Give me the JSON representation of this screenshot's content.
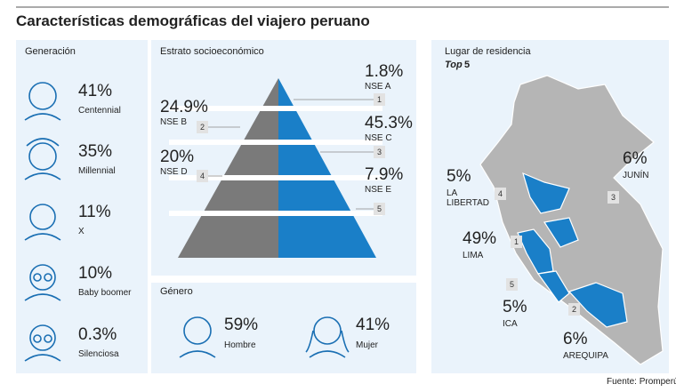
{
  "title": "Características demográficas del viajero peruano",
  "generation": {
    "title": "Generación",
    "items": [
      {
        "value": "41%",
        "label": "Centennial"
      },
      {
        "value": "35%",
        "label": "Millennial"
      },
      {
        "value": "11%",
        "label": "X"
      },
      {
        "value": "10%",
        "label": "Baby boomer"
      },
      {
        "value": "0.3%",
        "label": "Silenciosa"
      }
    ]
  },
  "strata": {
    "title": "Estrato socioeconómico",
    "items": [
      {
        "value": "1.8%",
        "label": "NSE A",
        "rank": "1"
      },
      {
        "value": "24.9%",
        "label": "NSE B",
        "rank": "2"
      },
      {
        "value": "45.3%",
        "label": "NSE C",
        "rank": "3"
      },
      {
        "value": "20%",
        "label": "NSE D",
        "rank": "4"
      },
      {
        "value": "7.9%",
        "label": "NSE E",
        "rank": "5"
      }
    ]
  },
  "gender": {
    "title": "Género",
    "items": [
      {
        "value": "59%",
        "label": "Hombre"
      },
      {
        "value": "41%",
        "label": "Mujer"
      }
    ]
  },
  "residence": {
    "title": "Lugar de residencia",
    "top_word": "Top",
    "top_count": "5",
    "items": [
      {
        "value": "5%",
        "label": "LA LIBERTAD",
        "rank": "4"
      },
      {
        "value": "6%",
        "label": "JUNÍN",
        "rank": "3"
      },
      {
        "value": "49%",
        "label": "LIMA",
        "rank": "1"
      },
      {
        "value": "5%",
        "label": "ICA",
        "rank": "5"
      },
      {
        "value": "6%",
        "label": "AREQUIPA",
        "rank": "2"
      }
    ]
  },
  "source": "Fuente: Promperú."
}
